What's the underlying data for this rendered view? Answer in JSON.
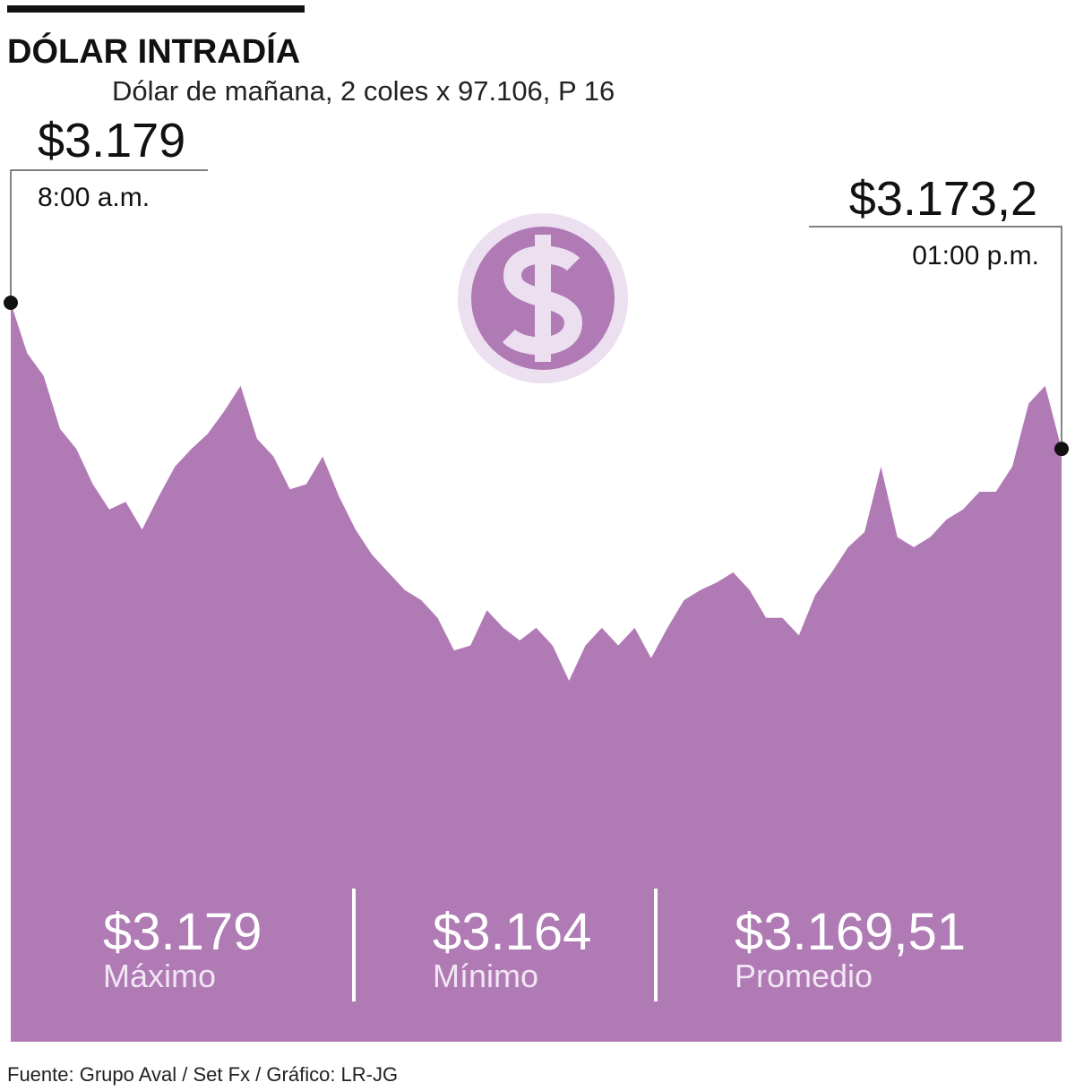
{
  "chart_data": {
    "type": "area",
    "title": "DÓLAR INTRADÍA",
    "subtitle": "Dólar de mañana, 2 coles x 97.106, P 16",
    "color": "#b07ab5",
    "values": [
      3179,
      3177.0,
      3176.1,
      3174.0,
      3173.2,
      3171.8,
      3170.8,
      3171.1,
      3170.0,
      3171.3,
      3172.5,
      3173.2,
      3173.8,
      3174.7,
      3175.7,
      3173.6,
      3172.9,
      3171.6,
      3171.8,
      3172.9,
      3171.3,
      3170.0,
      3169.0,
      3168.3,
      3167.6,
      3167.2,
      3166.5,
      3165.2,
      3165.4,
      3166.8,
      3166.1,
      3165.6,
      3166.1,
      3165.4,
      3164,
      3165.4,
      3166.1,
      3165.4,
      3166.1,
      3164.9,
      3166.1,
      3167.2,
      3167.6,
      3167.9,
      3168.3,
      3167.6,
      3166.5,
      3166.5,
      3165.8,
      3167.4,
      3168.3,
      3169.3,
      3169.9,
      3172.5,
      3169.7,
      3169.3,
      3169.7,
      3170.4,
      3170.8,
      3171.5,
      3171.5,
      3172.5,
      3175.0,
      3175.7,
      3173.2
    ],
    "start": {
      "value": 3179,
      "label": "$3.179",
      "time": "8:00 a.m."
    },
    "end": {
      "value": 3173.2,
      "label": "$3.173,2",
      "time": "01:00 p.m."
    },
    "stats": [
      {
        "value": 3179,
        "label": "$3.179",
        "name": "Máximo"
      },
      {
        "value": 3164,
        "label": "$3.164",
        "name": "Mínimo"
      },
      {
        "value": 3169.51,
        "label": "$3.169,51",
        "name": "Promedio"
      }
    ],
    "source": "Fuente: Grupo Aval / Set Fx / Gráfico: LR-JG"
  }
}
